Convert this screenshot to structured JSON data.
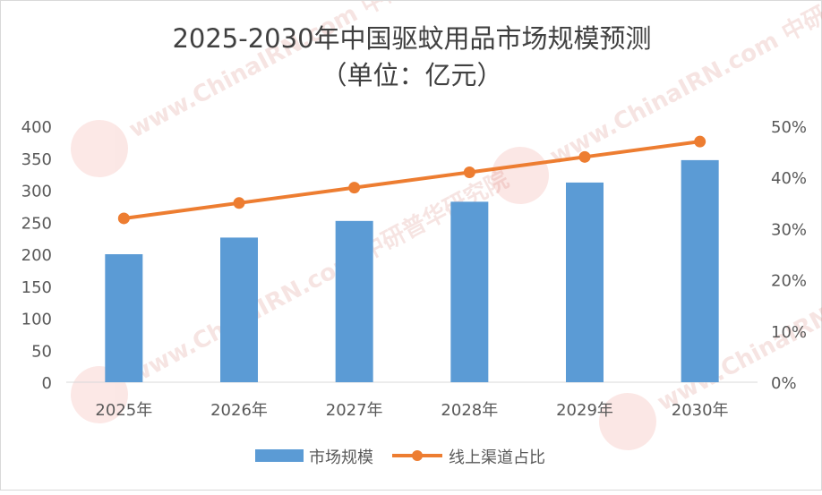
{
  "chart_data": {
    "type": "bar",
    "title_line1": "2025-2030年中国驱蚊用品市场规模预测",
    "title_line2": "（单位：亿元）",
    "categories": [
      "2025年",
      "2026年",
      "2027年",
      "2028年",
      "2029年",
      "2030年"
    ],
    "series": [
      {
        "name": "市场规模",
        "type": "bar",
        "axis": "left",
        "color": "#5b9bd5",
        "values": [
          200,
          226,
          252,
          282,
          312,
          347
        ]
      },
      {
        "name": "线上渠道占比",
        "type": "line",
        "axis": "right",
        "color": "#ed7d31",
        "values": [
          0.32,
          0.35,
          0.38,
          0.41,
          0.44,
          0.47
        ]
      }
    ],
    "y_left": {
      "min": 0,
      "max": 400,
      "step": 50,
      "ticks": [
        "0",
        "50",
        "100",
        "150",
        "200",
        "250",
        "300",
        "350",
        "400"
      ]
    },
    "y_right": {
      "min": 0,
      "max": 0.5,
      "step": 0.1,
      "ticks": [
        "0%",
        "10%",
        "20%",
        "30%",
        "40%",
        "50%"
      ]
    },
    "grid": false,
    "legend_position": "bottom"
  },
  "watermark": {
    "text": "www.ChinaIRN.com 中研普华研究院",
    "logo": "CIRN"
  }
}
